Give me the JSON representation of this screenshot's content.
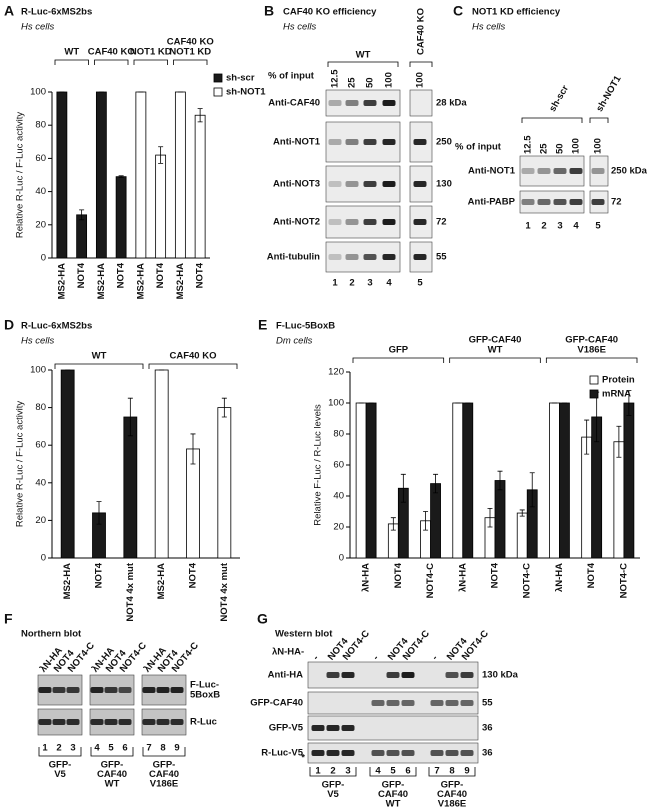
{
  "chart_data": [
    {
      "type": "bar",
      "panel": "A",
      "title": "R-Luc-6xMS2bs",
      "subtitle": "Hs cells",
      "y_label": "Relative R-Luc / F-Luc activity",
      "groups": [
        {
          "label": [
            "WT"
          ]
        },
        {
          "label": [
            "CAF40 KO"
          ]
        },
        {
          "label": [
            "NOT1 KD"
          ]
        },
        {
          "label": [
            "CAF40 KO",
            "NOT1 KD"
          ]
        }
      ],
      "categories": [
        "MS2-HA",
        "NOT4",
        "MS2-HA",
        "NOT4",
        "MS2-HA",
        "NOT4",
        "MS2-HA",
        "NOT4"
      ],
      "series": [
        {
          "name": "sh-scr",
          "color": "#1a1a1a",
          "values": [
            100,
            26,
            100,
            49,
            null,
            null,
            null,
            null
          ],
          "errors": [
            0,
            3,
            0,
            0.5,
            null,
            null,
            null,
            null
          ]
        },
        {
          "name": "sh-NOT1",
          "color": "#ffffff",
          "values": [
            null,
            null,
            null,
            null,
            100,
            62,
            100,
            86
          ],
          "errors": [
            null,
            null,
            null,
            null,
            0,
            5,
            0,
            4
          ]
        }
      ],
      "ylim": [
        0,
        100
      ],
      "yticks": [
        0,
        20,
        40,
        60,
        80,
        100
      ],
      "legend": "right"
    },
    {
      "type": "bar",
      "panel": "D",
      "title": "R-Luc-6xMS2bs",
      "subtitle": "Hs cells",
      "y_label": "Relative R-Luc / F-Luc activity",
      "groups": [
        {
          "label": [
            "WT"
          ]
        },
        {
          "label": [
            "CAF40 KO"
          ]
        }
      ],
      "categories": [
        "MS2-HA",
        "NOT4",
        "NOT4 4x mut",
        "MS2-HA",
        "NOT4",
        "NOT4 4x mut"
      ],
      "series": [
        {
          "color": "#1a1a1a",
          "values": [
            100,
            24,
            75,
            null,
            null,
            null
          ],
          "errors": [
            0,
            6,
            10,
            null,
            null,
            null
          ]
        },
        {
          "color": "#ffffff",
          "values": [
            null,
            null,
            null,
            100,
            58,
            80
          ],
          "errors": [
            null,
            null,
            null,
            0,
            8,
            5
          ]
        }
      ],
      "ylim": [
        0,
        100
      ],
      "yticks": [
        0,
        20,
        40,
        60,
        80,
        100
      ]
    },
    {
      "type": "bar",
      "panel": "E",
      "title": "F-Luc-5BoxB",
      "subtitle": "Dm cells",
      "y_label": "Relative F-Luc / R-Luc levels",
      "groups": [
        {
          "label": [
            "GFP"
          ]
        },
        {
          "label": [
            "GFP-CAF40",
            "WT"
          ]
        },
        {
          "label": [
            "GFP-CAF40",
            "V186E"
          ]
        }
      ],
      "categories": [
        "λN-HA",
        "NOT4",
        "NOT4-C",
        "λN-HA",
        "NOT4",
        "NOT4-C",
        "λN-HA",
        "NOT4",
        "NOT4-C"
      ],
      "series": [
        {
          "name": "Protein",
          "color": "#ffffff",
          "values": [
            100,
            22,
            24,
            100,
            26,
            29,
            100,
            78,
            75
          ],
          "errors": [
            0,
            4,
            6,
            0,
            6,
            2,
            0,
            11,
            10
          ]
        },
        {
          "name": "mRNA",
          "color": "#1a1a1a",
          "values": [
            100,
            45,
            48,
            100,
            50,
            44,
            100,
            91,
            100
          ],
          "errors": [
            0,
            9,
            6,
            0,
            6,
            11,
            0,
            16,
            8
          ]
        }
      ],
      "ylim": [
        0,
        120
      ],
      "yticks": [
        0,
        20,
        40,
        60,
        80,
        100,
        120
      ],
      "legend": "upper right"
    }
  ],
  "blots": {
    "B": {
      "panel": "B",
      "title": "CAF40 KO efficiency",
      "subtitle": "Hs cells",
      "groups": [
        {
          "label": [
            "WT"
          ]
        },
        {
          "label": [
            "CAF40 KO"
          ]
        }
      ],
      "input_label": "% of input",
      "lanes": [
        "12.5",
        "25",
        "50",
        "100",
        "100"
      ],
      "rows": [
        {
          "label": [
            "Anti-CAF40"
          ],
          "markers": [
            "28 kDa"
          ]
        },
        {
          "label": [
            "Anti-NOT1"
          ],
          "markers": [
            "250"
          ]
        },
        {
          "label": [
            "Anti-NOT3"
          ],
          "markers": [
            "130"
          ]
        },
        {
          "label": [
            "Anti-NOT2"
          ],
          "markers": [
            "72"
          ]
        },
        {
          "label": [
            "Anti-tubulin"
          ],
          "markers": [
            "55"
          ]
        }
      ],
      "lane_numbers": [
        "1",
        "2",
        "3",
        "4",
        "5"
      ]
    },
    "C": {
      "panel": "C",
      "title": "NOT1 KD efficiency",
      "subtitle": "Hs cells",
      "groups": [
        {
          "label": [
            "sh-scr"
          ]
        },
        {
          "label": [
            "sh-NOT1"
          ]
        }
      ],
      "input_label": "% of input",
      "lanes": [
        "12.5",
        "25",
        "50",
        "100",
        "100"
      ],
      "rows": [
        {
          "label": [
            "Anti-NOT1"
          ],
          "markers": [
            "250 kDa"
          ]
        },
        {
          "label": [
            "Anti-PABP"
          ],
          "markers": [
            "72"
          ]
        }
      ],
      "lane_numbers": [
        "1",
        "2",
        "3",
        "4",
        "5"
      ]
    },
    "F": {
      "panel": "F",
      "title": "Northern blot",
      "lanes": [
        "λN-HA",
        "NOT4",
        "NOT4-C",
        "λN-HA",
        "NOT4",
        "NOT4-C",
        "λN-HA",
        "NOT4",
        "NOT4-C"
      ],
      "rows": [
        {
          "label": [
            "F-Luc-",
            "5BoxB"
          ]
        },
        {
          "label": [
            "R-Luc"
          ]
        }
      ],
      "lane_numbers": [
        "1",
        "2",
        "3",
        "4",
        "5",
        "6",
        "7",
        "8",
        "9"
      ],
      "groups": [
        {
          "label": [
            "GFP-",
            "V5"
          ]
        },
        {
          "label": [
            "GFP-",
            "CAF40",
            "WT"
          ]
        },
        {
          "label": [
            "GFP-",
            "CAF40",
            "V186E"
          ]
        }
      ]
    },
    "G": {
      "panel": "G",
      "title": "Western blot",
      "lane_prefix": "λN-HA-",
      "lanes": [
        "-",
        "NOT4",
        "NOT4-C",
        "-",
        "NOT4",
        "NOT4-C",
        "-",
        "NOT4",
        "NOT4-C"
      ],
      "rows": [
        {
          "label": [
            "Anti-HA"
          ],
          "markers": [
            "130 kDa"
          ]
        },
        {
          "label": [
            "GFP-CAF40"
          ],
          "markers": [
            "55"
          ]
        },
        {
          "label": [
            "GFP-V5"
          ],
          "markers": [
            "36"
          ]
        },
        {
          "label": [
            "R-Luc-V5"
          ],
          "markers": [
            "36"
          ]
        }
      ],
      "asterisk": "*",
      "lane_numbers": [
        "1",
        "2",
        "3",
        "4",
        "5",
        "6",
        "7",
        "8",
        "9"
      ],
      "groups": [
        {
          "label": [
            "GFP-",
            "V5"
          ]
        },
        {
          "label": [
            "GFP-",
            "CAF40",
            "WT"
          ]
        },
        {
          "label": [
            "GFP-",
            "CAF40",
            "V186E"
          ]
        }
      ]
    }
  }
}
